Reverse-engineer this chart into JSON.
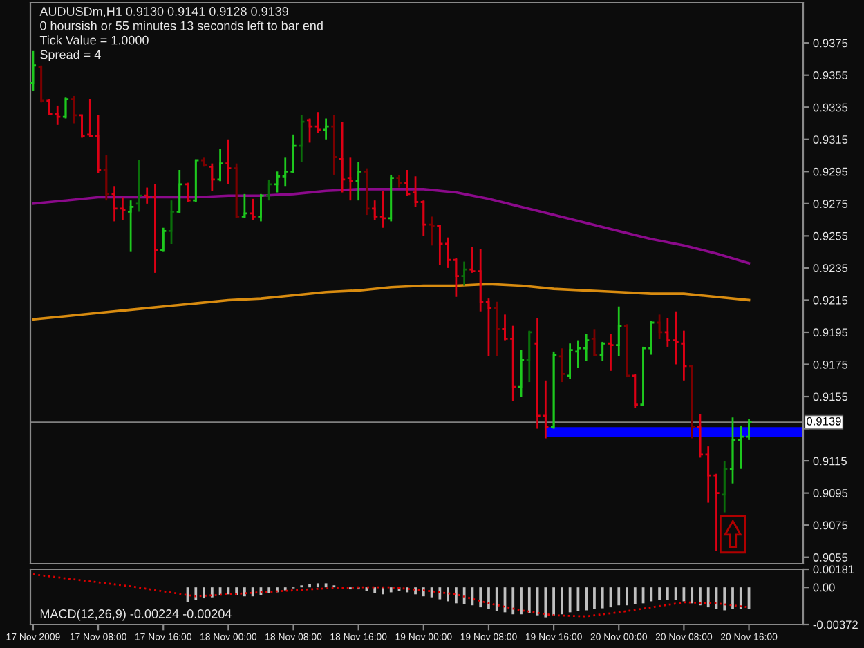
{
  "chart_data": [
    {
      "type": "candlestick",
      "title": "AUDUSDm,H1 0.9130 0.9141 0.9128 0.9139",
      "annotations": [
        "0 hoursish or 55 minutes 13 seconds left to bar end",
        "Tick Value = 1.0000",
        "Spread = 4"
      ],
      "x": [
        "2009-11-17T00:00",
        "2009-11-17T01:00",
        "2009-11-17T02:00",
        "2009-11-17T03:00",
        "2009-11-17T04:00",
        "2009-11-17T05:00",
        "2009-11-17T06:00",
        "2009-11-17T07:00",
        "2009-11-17T08:00",
        "2009-11-17T09:00",
        "2009-11-17T10:00",
        "2009-11-17T11:00",
        "2009-11-17T12:00",
        "2009-11-17T13:00",
        "2009-11-17T14:00",
        "2009-11-17T15:00",
        "2009-11-17T16:00",
        "2009-11-17T17:00",
        "2009-11-17T18:00",
        "2009-11-17T19:00",
        "2009-11-17T20:00",
        "2009-11-17T21:00",
        "2009-11-17T22:00",
        "2009-11-17T23:00",
        "2009-11-18T00:00",
        "2009-11-18T01:00",
        "2009-11-18T02:00",
        "2009-11-18T03:00",
        "2009-11-18T04:00",
        "2009-11-18T05:00",
        "2009-11-18T06:00",
        "2009-11-18T07:00",
        "2009-11-18T08:00",
        "2009-11-18T09:00",
        "2009-11-18T10:00",
        "2009-11-18T11:00",
        "2009-11-18T12:00",
        "2009-11-18T13:00",
        "2009-11-18T14:00",
        "2009-11-18T15:00",
        "2009-11-18T16:00",
        "2009-11-18T17:00",
        "2009-11-18T18:00",
        "2009-11-18T19:00",
        "2009-11-18T20:00",
        "2009-11-18T21:00",
        "2009-11-18T22:00",
        "2009-11-18T23:00",
        "2009-11-19T00:00",
        "2009-11-19T01:00",
        "2009-11-19T02:00",
        "2009-11-19T03:00",
        "2009-11-19T04:00",
        "2009-11-19T05:00",
        "2009-11-19T06:00",
        "2009-11-19T07:00",
        "2009-11-19T08:00",
        "2009-11-19T09:00",
        "2009-11-19T10:00",
        "2009-11-19T11:00",
        "2009-11-19T12:00",
        "2009-11-19T13:00",
        "2009-11-19T14:00",
        "2009-11-19T15:00",
        "2009-11-19T16:00",
        "2009-11-19T17:00",
        "2009-11-19T18:00",
        "2009-11-19T19:00",
        "2009-11-19T20:00",
        "2009-11-19T21:00",
        "2009-11-19T22:00",
        "2009-11-19T23:00",
        "2009-11-20T00:00",
        "2009-11-20T01:00",
        "2009-11-20T02:00",
        "2009-11-20T03:00",
        "2009-11-20T04:00",
        "2009-11-20T05:00",
        "2009-11-20T06:00",
        "2009-11-20T07:00",
        "2009-11-20T08:00",
        "2009-11-20T09:00",
        "2009-11-20T10:00",
        "2009-11-20T11:00",
        "2009-11-20T12:00",
        "2009-11-20T13:00",
        "2009-11-20T14:00",
        "2009-11-20T15:00",
        "2009-11-20T16:00"
      ],
      "ohlc": [
        [
          0.935,
          0.937,
          0.9345,
          0.9361
        ],
        [
          0.936,
          0.9361,
          0.9338,
          0.9339
        ],
        [
          0.9339,
          0.934,
          0.933,
          0.9331
        ],
        [
          0.9331,
          0.9336,
          0.9324,
          0.9329
        ],
        [
          0.9329,
          0.9341,
          0.9328,
          0.934
        ],
        [
          0.934,
          0.9342,
          0.9325,
          0.933
        ],
        [
          0.933,
          0.933,
          0.9316,
          0.9317
        ],
        [
          0.9318,
          0.934,
          0.9317,
          0.9317
        ],
        [
          0.9317,
          0.933,
          0.9294,
          0.9296
        ],
        [
          0.9296,
          0.9305,
          0.9277,
          0.9281
        ],
        [
          0.9281,
          0.9286,
          0.9264,
          0.9272
        ],
        [
          0.9272,
          0.9279,
          0.9265,
          0.9271
        ],
        [
          0.927,
          0.9277,
          0.9245,
          0.9273
        ],
        [
          0.9275,
          0.9302,
          0.927,
          0.928
        ],
        [
          0.928,
          0.9285,
          0.9275,
          0.9279
        ],
        [
          0.9279,
          0.9287,
          0.9232,
          0.9246
        ],
        [
          0.9246,
          0.926,
          0.9245,
          0.9258
        ],
        [
          0.9258,
          0.9277,
          0.925,
          0.927
        ],
        [
          0.927,
          0.9296,
          0.9269,
          0.9287
        ],
        [
          0.9287,
          0.9288,
          0.9276,
          0.9277
        ],
        [
          0.9277,
          0.9302,
          0.9276,
          0.9302
        ],
        [
          0.9302,
          0.9304,
          0.9298,
          0.9299
        ],
        [
          0.9298,
          0.93,
          0.9283,
          0.929
        ],
        [
          0.929,
          0.9309,
          0.9289,
          0.93
        ],
        [
          0.93,
          0.9315,
          0.9287,
          0.9297
        ],
        [
          0.9297,
          0.93,
          0.9266,
          0.9267
        ],
        [
          0.9267,
          0.9281,
          0.9266,
          0.9269
        ],
        [
          0.9269,
          0.9278,
          0.9265,
          0.9267
        ],
        [
          0.9267,
          0.9281,
          0.9264,
          0.928
        ],
        [
          0.928,
          0.929,
          0.9277,
          0.9287
        ],
        [
          0.9287,
          0.9295,
          0.9282,
          0.9292
        ],
        [
          0.9292,
          0.9304,
          0.9286,
          0.9295
        ],
        [
          0.9295,
          0.9318,
          0.9294,
          0.9311
        ],
        [
          0.9311,
          0.933,
          0.9301,
          0.9326
        ],
        [
          0.9327,
          0.9328,
          0.9313,
          0.9323
        ],
        [
          0.9323,
          0.9332,
          0.9319,
          0.9321
        ],
        [
          0.9321,
          0.9328,
          0.9315,
          0.9323
        ],
        [
          0.9323,
          0.933,
          0.9293,
          0.9304
        ],
        [
          0.9303,
          0.9326,
          0.9282,
          0.929
        ],
        [
          0.9291,
          0.9304,
          0.9277,
          0.9289
        ],
        [
          0.9289,
          0.9301,
          0.9277,
          0.9295
        ],
        [
          0.9295,
          0.9297,
          0.9268,
          0.9272
        ],
        [
          0.9272,
          0.9277,
          0.9265,
          0.9267
        ],
        [
          0.9267,
          0.9283,
          0.926,
          0.9266
        ],
        [
          0.9266,
          0.9293,
          0.9264,
          0.9291
        ],
        [
          0.9291,
          0.9293,
          0.9285,
          0.9288
        ],
        [
          0.9288,
          0.9296,
          0.928,
          0.9281
        ],
        [
          0.9282,
          0.9292,
          0.9273,
          0.9276
        ],
        [
          0.9276,
          0.9277,
          0.9255,
          0.9262
        ],
        [
          0.9262,
          0.9267,
          0.9249,
          0.9261
        ],
        [
          0.9261,
          0.9262,
          0.9237,
          0.925
        ],
        [
          0.925,
          0.9254,
          0.9235,
          0.924
        ],
        [
          0.924,
          0.9241,
          0.9217,
          0.923
        ],
        [
          0.923,
          0.9239,
          0.9224,
          0.9234
        ],
        [
          0.9234,
          0.9248,
          0.9232,
          0.9233
        ],
        [
          0.9233,
          0.9247,
          0.9208,
          0.9214
        ],
        [
          0.9214,
          0.9216,
          0.918,
          0.921
        ],
        [
          0.921,
          0.9214,
          0.918,
          0.9197
        ],
        [
          0.9197,
          0.9206,
          0.919,
          0.9191
        ],
        [
          0.9191,
          0.9199,
          0.9152,
          0.9161
        ],
        [
          0.9161,
          0.9184,
          0.9155,
          0.9178
        ],
        [
          0.9178,
          0.9196,
          0.9164,
          0.9195
        ],
        [
          0.9188,
          0.9204,
          0.9135,
          0.9143
        ],
        [
          0.9143,
          0.9165,
          0.9129,
          0.9136
        ],
        [
          0.9136,
          0.9183,
          0.9135,
          0.9181
        ],
        [
          0.918,
          0.9185,
          0.9164,
          0.9169
        ],
        [
          0.9168,
          0.9188,
          0.9166,
          0.9184
        ],
        [
          0.9183,
          0.919,
          0.9173,
          0.9185
        ],
        [
          0.9185,
          0.9194,
          0.9177,
          0.919
        ],
        [
          0.9191,
          0.9197,
          0.918,
          0.9181
        ],
        [
          0.9181,
          0.9189,
          0.9177,
          0.9188
        ],
        [
          0.9188,
          0.9194,
          0.9171,
          0.9187
        ],
        [
          0.9187,
          0.9211,
          0.918,
          0.9199
        ],
        [
          0.9199,
          0.92,
          0.9167,
          0.9168
        ],
        [
          0.9168,
          0.9169,
          0.9148,
          0.915
        ],
        [
          0.915,
          0.9186,
          0.9149,
          0.9185
        ],
        [
          0.9185,
          0.9202,
          0.9181,
          0.9201
        ],
        [
          0.9201,
          0.9206,
          0.9191,
          0.9195
        ],
        [
          0.9195,
          0.9204,
          0.9186,
          0.919
        ],
        [
          0.919,
          0.9208,
          0.9175,
          0.9189
        ],
        [
          0.9188,
          0.9196,
          0.9165,
          0.9174
        ],
        [
          0.9174,
          0.9174,
          0.9129,
          0.9136
        ],
        [
          0.9136,
          0.9144,
          0.9117,
          0.9119
        ],
        [
          0.9119,
          0.9124,
          0.9089,
          0.9106
        ],
        [
          0.9106,
          0.9107,
          0.9059,
          0.9095
        ],
        [
          0.9094,
          0.9115,
          0.9083,
          0.911
        ],
        [
          0.911,
          0.9142,
          0.9101,
          0.9128
        ],
        [
          0.9128,
          0.9137,
          0.911,
          0.913
        ],
        [
          0.913,
          0.9141,
          0.9128,
          0.9139
        ]
      ],
      "colors": [
        "#1ec81e",
        "#7a0000",
        "#dc0014",
        "#dc0014",
        "#1ec81e",
        "#7a0000",
        "#dc0014",
        "#dc0014",
        "#dc0014",
        "#7a0000",
        "#dc0014",
        "#dc0014",
        "#1ec81e",
        "#0b6e0b",
        "#dc0014",
        "#dc0014",
        "#1ec81e",
        "#0b6e0b",
        "#1ec81e",
        "#dc0014",
        "#1ec81e",
        "#7a0000",
        "#dc0014",
        "#1ec81e",
        "#dc0014",
        "#7a0000",
        "#1ec81e",
        "#dc0014",
        "#1ec81e",
        "#0b6e0b",
        "#1ec81e",
        "#1ec81e",
        "#1ec81e",
        "#0b6e0b",
        "#dc0014",
        "#dc0014",
        "#1ec81e",
        "#7a0000",
        "#dc0014",
        "#dc0014",
        "#1ec81e",
        "#7a0000",
        "#dc0014",
        "#dc0014",
        "#1ec81e",
        "#7a0000",
        "#dc0014",
        "#dc0014",
        "#dc0014",
        "#7a0000",
        "#dc0014",
        "#dc0014",
        "#dc0014",
        "#0b6e0b",
        "#dc0014",
        "#dc0014",
        "#dc0014",
        "#7a0000",
        "#dc0014",
        "#dc0014",
        "#1ec81e",
        "#0b6e0b",
        "#dc0014",
        "#dc0014",
        "#1ec81e",
        "#7a0000",
        "#1ec81e",
        "#1ec81e",
        "#1ec81e",
        "#7a0000",
        "#1ec81e",
        "#dc0014",
        "#1ec81e",
        "#7a0000",
        "#dc0014",
        "#1ec81e",
        "#1ec81e",
        "#7a0000",
        "#dc0014",
        "#dc0014",
        "#dc0014",
        "#7a0000",
        "#dc0014",
        "#dc0014",
        "#dc0014",
        "#0b6e0b",
        "#1ec81e",
        "#1ec81e",
        "#1ec81e"
      ],
      "series": [
        {
          "type": "line",
          "color": "#8b0a8b",
          "x": [
            "2009-11-17T00:00",
            "2009-11-17T04:00",
            "2009-11-17T08:00",
            "2009-11-17T12:00",
            "2009-11-17T16:00",
            "2009-11-17T20:00",
            "2009-11-18T00:00",
            "2009-11-18T04:00",
            "2009-11-18T08:00",
            "2009-11-18T12:00",
            "2009-11-18T16:00",
            "2009-11-18T20:00",
            "2009-11-19T00:00",
            "2009-11-19T04:00",
            "2009-11-19T08:00",
            "2009-11-19T12:00",
            "2009-11-19T16:00",
            "2009-11-19T20:00",
            "2009-11-20T00:00",
            "2009-11-20T04:00",
            "2009-11-20T08:00",
            "2009-11-20T12:00",
            "2009-11-20T16:00"
          ],
          "values": [
            0.9275,
            0.9277,
            0.9279,
            0.9279,
            0.9279,
            0.9279,
            0.928,
            0.928,
            0.9281,
            0.9283,
            0.9284,
            0.9284,
            0.9284,
            0.9282,
            0.9278,
            0.9273,
            0.9268,
            0.9263,
            0.9258,
            0.9253,
            0.9249,
            0.9244,
            0.9238
          ]
        },
        {
          "type": "line",
          "color": "#d98c10",
          "x": [
            "2009-11-17T00:00",
            "2009-11-17T04:00",
            "2009-11-17T08:00",
            "2009-11-17T12:00",
            "2009-11-17T16:00",
            "2009-11-17T20:00",
            "2009-11-18T00:00",
            "2009-11-18T04:00",
            "2009-11-18T08:00",
            "2009-11-18T12:00",
            "2009-11-18T16:00",
            "2009-11-18T20:00",
            "2009-11-19T00:00",
            "2009-11-19T04:00",
            "2009-11-19T08:00",
            "2009-11-19T12:00",
            "2009-11-19T16:00",
            "2009-11-19T20:00",
            "2009-11-20T00:00",
            "2009-11-20T04:00",
            "2009-11-20T08:00",
            "2009-11-20T12:00",
            "2009-11-20T16:00"
          ],
          "values": [
            0.9203,
            0.9205,
            0.9207,
            0.9209,
            0.9211,
            0.9213,
            0.9215,
            0.9216,
            0.9218,
            0.922,
            0.9221,
            0.9223,
            0.9224,
            0.9224,
            0.9225,
            0.9224,
            0.9222,
            0.9221,
            0.922,
            0.9219,
            0.9219,
            0.9217,
            0.9215
          ]
        },
        {
          "type": "line",
          "color": "#0000ff",
          "x": [
            "2009-11-19T15:00",
            "2009-11-20T22:40"
          ],
          "values": [
            null,
            null
          ],
          "upper": [
            0.9136,
            0.9136
          ],
          "lower": [
            0.913,
            0.913
          ]
        }
      ],
      "ref_lines": [
        {
          "axis": "y",
          "value": 0.9139,
          "label": "0.9139",
          "color": "#808080"
        }
      ],
      "xlim": [
        "2009-11-16T23:40",
        "2009-11-20T22:40"
      ],
      "ylim": [
        0.9051,
        0.94
      ],
      "yticks": [
        0.9055,
        0.9075,
        0.9095,
        0.9115,
        {
          "value": 0.9135,
          "label": null
        },
        0.9155,
        0.9175,
        0.9195,
        0.9215,
        0.9235,
        0.9255,
        0.9275,
        0.9295,
        0.9315,
        0.9335,
        0.9355,
        0.9375
      ],
      "tick_labels": "y"
    },
    {
      "type": "bar",
      "title": "MACD(12,26,9) -0.00224 -0.00204",
      "series": [
        {
          "type": "bar",
          "color": "#c0c0c0",
          "x": [
            "2009-11-17T19:00",
            "2009-11-17T20:00",
            "2009-11-17T21:00",
            "2009-11-17T22:00",
            "2009-11-17T23:00",
            "2009-11-18T00:00",
            "2009-11-18T01:00",
            "2009-11-18T02:00",
            "2009-11-18T03:00",
            "2009-11-18T04:00",
            "2009-11-18T05:00",
            "2009-11-18T06:00",
            "2009-11-18T07:00",
            "2009-11-18T08:00",
            "2009-11-18T09:00",
            "2009-11-18T10:00",
            "2009-11-18T11:00",
            "2009-11-18T12:00",
            "2009-11-18T13:00",
            "2009-11-18T14:00",
            "2009-11-18T15:00",
            "2009-11-18T16:00",
            "2009-11-18T17:00",
            "2009-11-18T18:00",
            "2009-11-18T19:00",
            "2009-11-18T20:00",
            "2009-11-18T21:00",
            "2009-11-18T22:00",
            "2009-11-18T23:00",
            "2009-11-19T00:00",
            "2009-11-19T01:00",
            "2009-11-19T02:00",
            "2009-11-19T03:00",
            "2009-11-19T04:00",
            "2009-11-19T05:00",
            "2009-11-19T06:00",
            "2009-11-19T07:00",
            "2009-11-19T08:00",
            "2009-11-19T09:00",
            "2009-11-19T10:00",
            "2009-11-19T11:00",
            "2009-11-19T12:00",
            "2009-11-19T13:00",
            "2009-11-19T14:00",
            "2009-11-19T15:00",
            "2009-11-19T16:00",
            "2009-11-19T17:00",
            "2009-11-19T18:00",
            "2009-11-19T19:00",
            "2009-11-19T20:00",
            "2009-11-19T21:00",
            "2009-11-19T22:00",
            "2009-11-19T23:00",
            "2009-11-20T00:00",
            "2009-11-20T01:00",
            "2009-11-20T02:00",
            "2009-11-20T03:00",
            "2009-11-20T04:00",
            "2009-11-20T05:00",
            "2009-11-20T06:00",
            "2009-11-20T07:00",
            "2009-11-20T08:00",
            "2009-11-20T09:00",
            "2009-11-20T10:00",
            "2009-11-20T11:00",
            "2009-11-20T12:00",
            "2009-11-20T13:00",
            "2009-11-20T14:00",
            "2009-11-20T15:00",
            "2009-11-20T16:00"
          ],
          "values": [
            -0.0015,
            -0.0013,
            -0.0011,
            -0.001,
            -0.0008,
            -0.0007,
            -0.0008,
            -0.0009,
            -0.0009,
            -0.0008,
            -0.0006,
            -0.0005,
            -0.0003,
            -0.0001,
            0.0002,
            0.0003,
            0.0004,
            0.0004,
            0.0002,
            0.0,
            -0.0002,
            -0.0002,
            -0.0004,
            -0.0006,
            -0.0007,
            -0.0005,
            -0.0004,
            -0.0005,
            -0.0007,
            -0.0009,
            -0.001,
            -0.0012,
            -0.0014,
            -0.0016,
            -0.0017,
            -0.0018,
            -0.002,
            -0.0022,
            -0.0024,
            -0.0025,
            -0.0027,
            -0.0027,
            -0.0026,
            -0.0028,
            -0.003,
            -0.0028,
            -0.0027,
            -0.0025,
            -0.0024,
            -0.0023,
            -0.0022,
            -0.0021,
            -0.002,
            -0.0018,
            -0.0018,
            -0.0017,
            -0.0016,
            -0.0014,
            -0.0013,
            -0.0013,
            -0.0013,
            -0.0014,
            -0.0016,
            -0.0018,
            -0.002,
            -0.0022,
            -0.0023,
            -0.0022,
            -0.0022,
            -0.0022
          ]
        },
        {
          "type": "line",
          "color": "#e00000",
          "line_style": "dotted",
          "x": [
            "2009-11-17T00:00",
            "2009-11-17T04:00",
            "2009-11-17T08:00",
            "2009-11-17T12:00",
            "2009-11-17T16:00",
            "2009-11-17T20:00",
            "2009-11-18T00:00",
            "2009-11-18T04:00",
            "2009-11-18T08:00",
            "2009-11-18T12:00",
            "2009-11-18T16:00",
            "2009-11-18T20:00",
            "2009-11-19T00:00",
            "2009-11-19T04:00",
            "2009-11-19T08:00",
            "2009-11-19T12:00",
            "2009-11-19T16:00",
            "2009-11-19T20:00",
            "2009-11-20T00:00",
            "2009-11-20T04:00",
            "2009-11-20T08:00",
            "2009-11-20T12:00",
            "2009-11-20T16:00"
          ],
          "values": [
            0.0013,
            0.0009,
            0.0005,
            0.0001,
            -0.0004,
            -0.0009,
            -0.0007,
            -0.0005,
            -0.0003,
            -0.0001,
            0.0,
            0.0,
            -0.0003,
            -0.0007,
            -0.0016,
            -0.0023,
            -0.0028,
            -0.0029,
            -0.0025,
            -0.002,
            -0.0015,
            -0.0016,
            -0.002
          ]
        }
      ],
      "xlim": [
        "2009-11-16T23:40",
        "2009-11-20T22:40"
      ],
      "xticks": [
        {
          "value": "2009-11-17T00:00",
          "label": "17 Nov 2009"
        },
        {
          "value": "2009-11-17T08:00",
          "label": "17 Nov 08:00"
        },
        {
          "value": "2009-11-17T16:00",
          "label": "17 Nov 16:00"
        },
        {
          "value": "2009-11-18T00:00",
          "label": "18 Nov 00:00"
        },
        {
          "value": "2009-11-18T08:00",
          "label": "18 Nov 08:00"
        },
        {
          "value": "2009-11-18T16:00",
          "label": "18 Nov 16:00"
        },
        {
          "value": "2009-11-19T00:00",
          "label": "19 Nov 00:00"
        },
        {
          "value": "2009-11-19T08:00",
          "label": "19 Nov 08:00"
        },
        {
          "value": "2009-11-19T16:00",
          "label": "19 Nov 16:00"
        },
        {
          "value": "2009-11-20T00:00",
          "label": "20 Nov 00:00"
        },
        {
          "value": "2009-11-20T08:00",
          "label": "20 Nov 08:00"
        },
        {
          "value": "2009-11-20T16:00",
          "label": "20 Nov 16:00"
        }
      ],
      "ylim": [
        -0.00372,
        0.00181
      ],
      "yticks": [
        0.00181,
        {
          "value": 0,
          "label": "0.00"
        },
        -0.00372
      ]
    }
  ]
}
